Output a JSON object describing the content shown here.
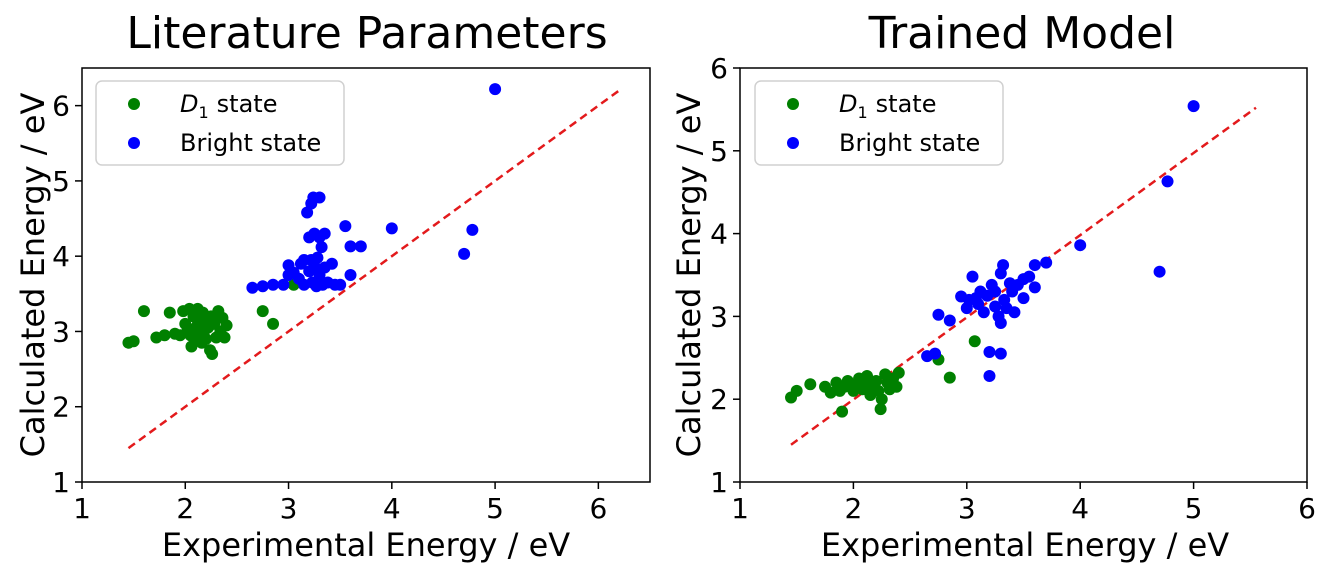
{
  "chart_data": [
    {
      "type": "scatter",
      "title": "Literature Parameters",
      "xlabel": "Experimental Energy / eV",
      "ylabel": "Calculated Energy / eV",
      "xlim": [
        1,
        6.5
      ],
      "ylim": [
        1,
        6.5
      ],
      "xticks": [
        1,
        2,
        3,
        4,
        5,
        6
      ],
      "yticks": [
        1,
        2,
        3,
        4,
        5,
        6
      ],
      "xtick_labels": [
        "1",
        "2",
        "3",
        "4",
        "5",
        "6"
      ],
      "ytick_labels": [
        "1",
        "2",
        "3",
        "4",
        "5",
        "6"
      ],
      "legend_position": "top-left",
      "reference_line": {
        "style": "dashed",
        "color": "#e31a1c",
        "from": [
          1.45,
          1.45
        ],
        "to": [
          6.22,
          6.22
        ]
      },
      "series": [
        {
          "name": "state",
          "legend_prefix": "D",
          "legend_subscript": "1",
          "color": "#008000",
          "points": [
            [
              1.45,
              2.85
            ],
            [
              1.5,
              2.87
            ],
            [
              1.6,
              3.27
            ],
            [
              1.72,
              2.92
            ],
            [
              1.8,
              2.95
            ],
            [
              1.85,
              3.25
            ],
            [
              1.9,
              2.97
            ],
            [
              1.95,
              2.95
            ],
            [
              1.98,
              3.27
            ],
            [
              2.0,
              3.1
            ],
            [
              2.02,
              3.0
            ],
            [
              2.04,
              3.3
            ],
            [
              2.05,
              2.95
            ],
            [
              2.06,
              2.8
            ],
            [
              2.08,
              3.2
            ],
            [
              2.1,
              3.05
            ],
            [
              2.1,
              2.88
            ],
            [
              2.12,
              3.15
            ],
            [
              2.12,
              3.3
            ],
            [
              2.14,
              2.95
            ],
            [
              2.15,
              3.1
            ],
            [
              2.16,
              2.85
            ],
            [
              2.17,
              3.25
            ],
            [
              2.18,
              3.0
            ],
            [
              2.2,
              3.18
            ],
            [
              2.2,
              2.9
            ],
            [
              2.22,
              3.05
            ],
            [
              2.24,
              2.75
            ],
            [
              2.25,
              3.2
            ],
            [
              2.26,
              2.7
            ],
            [
              2.28,
              3.1
            ],
            [
              2.3,
              2.92
            ],
            [
              2.32,
              3.27
            ],
            [
              2.34,
              3.0
            ],
            [
              2.36,
              3.18
            ],
            [
              2.38,
              2.92
            ],
            [
              2.4,
              3.08
            ],
            [
              2.75,
              3.27
            ],
            [
              2.85,
              3.1
            ],
            [
              3.05,
              3.62
            ]
          ]
        },
        {
          "name": "Bright state",
          "color": "#0000ff",
          "points": [
            [
              2.65,
              3.58
            ],
            [
              2.75,
              3.6
            ],
            [
              2.85,
              3.62
            ],
            [
              2.95,
              3.62
            ],
            [
              3.0,
              3.75
            ],
            [
              3.0,
              3.88
            ],
            [
              3.05,
              3.78
            ],
            [
              3.1,
              3.7
            ],
            [
              3.12,
              3.9
            ],
            [
              3.15,
              3.95
            ],
            [
              3.15,
              3.62
            ],
            [
              3.18,
              4.58
            ],
            [
              3.2,
              4.25
            ],
            [
              3.2,
              3.8
            ],
            [
              3.22,
              3.95
            ],
            [
              3.22,
              4.7
            ],
            [
              3.23,
              3.65
            ],
            [
              3.24,
              4.78
            ],
            [
              3.25,
              4.3
            ],
            [
              3.26,
              3.85
            ],
            [
              3.27,
              3.6
            ],
            [
              3.28,
              3.98
            ],
            [
              3.3,
              4.78
            ],
            [
              3.3,
              4.25
            ],
            [
              3.3,
              3.75
            ],
            [
              3.32,
              4.12
            ],
            [
              3.33,
              3.62
            ],
            [
              3.35,
              4.3
            ],
            [
              3.35,
              3.85
            ],
            [
              3.38,
              3.65
            ],
            [
              3.42,
              3.9
            ],
            [
              3.45,
              3.62
            ],
            [
              3.5,
              3.62
            ],
            [
              3.55,
              4.4
            ],
            [
              3.6,
              3.75
            ],
            [
              3.6,
              4.13
            ],
            [
              3.7,
              4.13
            ],
            [
              4.0,
              4.37
            ],
            [
              4.7,
              4.03
            ],
            [
              4.78,
              4.35
            ],
            [
              5.0,
              6.22
            ]
          ]
        }
      ]
    },
    {
      "type": "scatter",
      "title": "Trained Model",
      "xlabel": "Experimental Energy / eV",
      "ylabel": "Calculated Energy / eV",
      "xlim": [
        1,
        6
      ],
      "ylim": [
        1,
        6
      ],
      "xticks": [
        1,
        2,
        3,
        4,
        5,
        6
      ],
      "yticks": [
        1,
        2,
        3,
        4,
        5,
        6
      ],
      "xtick_labels": [
        "1",
        "2",
        "3",
        "4",
        "5",
        "6"
      ],
      "ytick_labels": [
        "1",
        "2",
        "3",
        "4",
        "5",
        "6"
      ],
      "legend_position": "top-left",
      "reference_line": {
        "style": "dashed",
        "color": "#e31a1c",
        "from": [
          1.45,
          1.45
        ],
        "to": [
          5.55,
          5.52
        ]
      },
      "series": [
        {
          "name": "state",
          "legend_prefix": "D",
          "legend_subscript": "1",
          "color": "#008000",
          "points": [
            [
              1.45,
              2.02
            ],
            [
              1.5,
              2.1
            ],
            [
              1.62,
              2.18
            ],
            [
              1.75,
              2.15
            ],
            [
              1.8,
              2.08
            ],
            [
              1.85,
              2.2
            ],
            [
              1.88,
              2.1
            ],
            [
              1.9,
              1.85
            ],
            [
              1.92,
              2.15
            ],
            [
              1.95,
              2.22
            ],
            [
              2.0,
              2.1
            ],
            [
              2.02,
              2.18
            ],
            [
              2.05,
              2.25
            ],
            [
              2.08,
              2.12
            ],
            [
              2.1,
              2.2
            ],
            [
              2.12,
              2.28
            ],
            [
              2.15,
              2.05
            ],
            [
              2.18,
              2.15
            ],
            [
              2.2,
              2.22
            ],
            [
              2.22,
              2.1
            ],
            [
              2.24,
              1.88
            ],
            [
              2.25,
              2.0
            ],
            [
              2.28,
              2.3
            ],
            [
              2.3,
              2.2
            ],
            [
              2.32,
              2.12
            ],
            [
              2.35,
              2.25
            ],
            [
              2.38,
              2.15
            ],
            [
              2.4,
              2.32
            ],
            [
              2.75,
              2.48
            ],
            [
              2.85,
              2.26
            ],
            [
              3.07,
              2.7
            ]
          ]
        },
        {
          "name": "Bright state",
          "color": "#0000ff",
          "points": [
            [
              2.65,
              2.52
            ],
            [
              2.72,
              2.55
            ],
            [
              2.75,
              3.02
            ],
            [
              2.85,
              2.95
            ],
            [
              2.95,
              3.24
            ],
            [
              3.0,
              3.1
            ],
            [
              3.02,
              3.2
            ],
            [
              3.05,
              3.48
            ],
            [
              3.08,
              3.22
            ],
            [
              3.1,
              3.15
            ],
            [
              3.12,
              3.3
            ],
            [
              3.15,
              3.05
            ],
            [
              3.18,
              3.25
            ],
            [
              3.2,
              2.57
            ],
            [
              3.2,
              2.28
            ],
            [
              3.22,
              3.38
            ],
            [
              3.25,
              3.12
            ],
            [
              3.25,
              3.3
            ],
            [
              3.28,
              3.0
            ],
            [
              3.3,
              2.55
            ],
            [
              3.3,
              2.92
            ],
            [
              3.3,
              3.52
            ],
            [
              3.32,
              3.62
            ],
            [
              3.33,
              3.2
            ],
            [
              3.35,
              3.1
            ],
            [
              3.38,
              3.4
            ],
            [
              3.4,
              3.3
            ],
            [
              3.42,
              3.05
            ],
            [
              3.45,
              3.38
            ],
            [
              3.5,
              3.45
            ],
            [
              3.5,
              3.22
            ],
            [
              3.55,
              3.48
            ],
            [
              3.6,
              3.62
            ],
            [
              3.6,
              3.35
            ],
            [
              3.7,
              3.65
            ],
            [
              4.0,
              3.86
            ],
            [
              4.7,
              3.54
            ],
            [
              4.77,
              4.63
            ],
            [
              5.0,
              5.54
            ]
          ]
        }
      ]
    }
  ]
}
